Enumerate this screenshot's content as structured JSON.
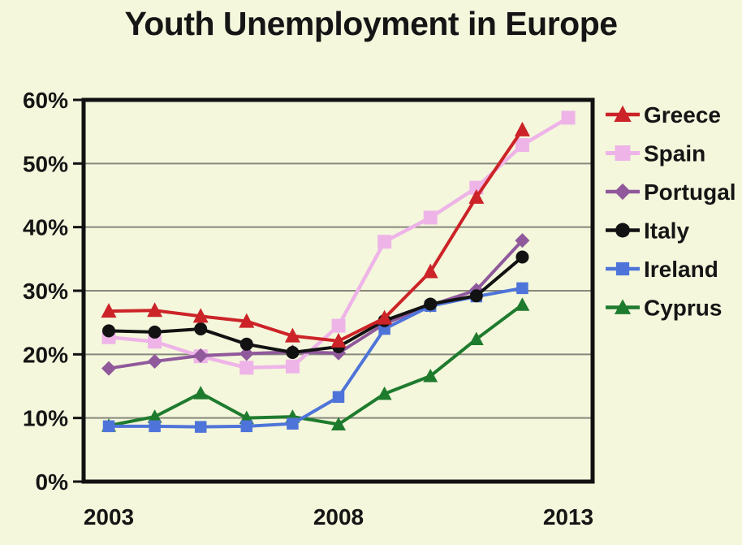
{
  "title": "Youth Unemployment in Europe",
  "colors": {
    "background": "#f4f7dc",
    "axis_box": "#111111",
    "gridline": "#87877b",
    "text": "#151515"
  },
  "chart_data": {
    "type": "line",
    "title": "Youth Unemployment in Europe",
    "ylabel": "",
    "xlabel": "",
    "ylim": [
      0,
      60
    ],
    "grid": "horizontal",
    "legend_position": "right-outside",
    "y_ticks": [
      0,
      10,
      20,
      30,
      40,
      50,
      60
    ],
    "y_tick_labels": [
      "0%",
      "10%",
      "20%",
      "30%",
      "40%",
      "50%",
      "60%"
    ],
    "x_ticks": [
      2003,
      2008,
      2013
    ],
    "x_tick_labels": [
      "2003",
      "2008",
      "2013"
    ],
    "x_range": [
      2003,
      2013
    ],
    "series": [
      {
        "name": "Greece",
        "color": "#cc2328",
        "marker": "triangle",
        "x": [
          2003,
          2004,
          2005,
          2006,
          2007,
          2008,
          2009,
          2010,
          2011,
          2012
        ],
        "values": [
          26.8,
          26.9,
          26.0,
          25.2,
          22.9,
          22.1,
          25.7,
          33.0,
          44.7,
          55.3
        ]
      },
      {
        "name": "Spain",
        "color": "#eeb4e8",
        "marker": "square",
        "x": [
          2003,
          2004,
          2005,
          2006,
          2007,
          2008,
          2009,
          2010,
          2011,
          2012,
          2013
        ],
        "values": [
          22.7,
          22.0,
          19.7,
          17.9,
          18.1,
          24.5,
          37.7,
          41.5,
          46.2,
          52.9,
          57.2
        ]
      },
      {
        "name": "Portugal",
        "color": "#90599c",
        "marker": "diamond",
        "x": [
          2003,
          2004,
          2005,
          2006,
          2007,
          2008,
          2009,
          2010,
          2011,
          2012
        ],
        "values": [
          17.8,
          18.9,
          19.8,
          20.1,
          20.4,
          20.2,
          24.8,
          27.7,
          30.1,
          37.9
        ]
      },
      {
        "name": "Italy",
        "color": "#121212",
        "marker": "circle",
        "x": [
          2003,
          2004,
          2005,
          2006,
          2007,
          2008,
          2009,
          2010,
          2011,
          2012
        ],
        "values": [
          23.7,
          23.5,
          24.0,
          21.6,
          20.3,
          21.2,
          25.3,
          27.9,
          29.2,
          35.3
        ]
      },
      {
        "name": "Ireland",
        "color": "#4f74d9",
        "marker": "square",
        "x": [
          2003,
          2004,
          2005,
          2006,
          2007,
          2008,
          2009,
          2010,
          2011,
          2012
        ],
        "values": [
          8.7,
          8.7,
          8.6,
          8.7,
          9.1,
          13.3,
          24.0,
          27.6,
          29.1,
          30.4
        ]
      },
      {
        "name": "Cyprus",
        "color": "#1e7b2e",
        "marker": "triangle",
        "x": [
          2003,
          2004,
          2005,
          2006,
          2007,
          2008,
          2009,
          2010,
          2011,
          2012
        ],
        "values": [
          8.8,
          10.2,
          13.9,
          10.0,
          10.2,
          9.0,
          13.8,
          16.6,
          22.4,
          27.8
        ]
      }
    ]
  }
}
